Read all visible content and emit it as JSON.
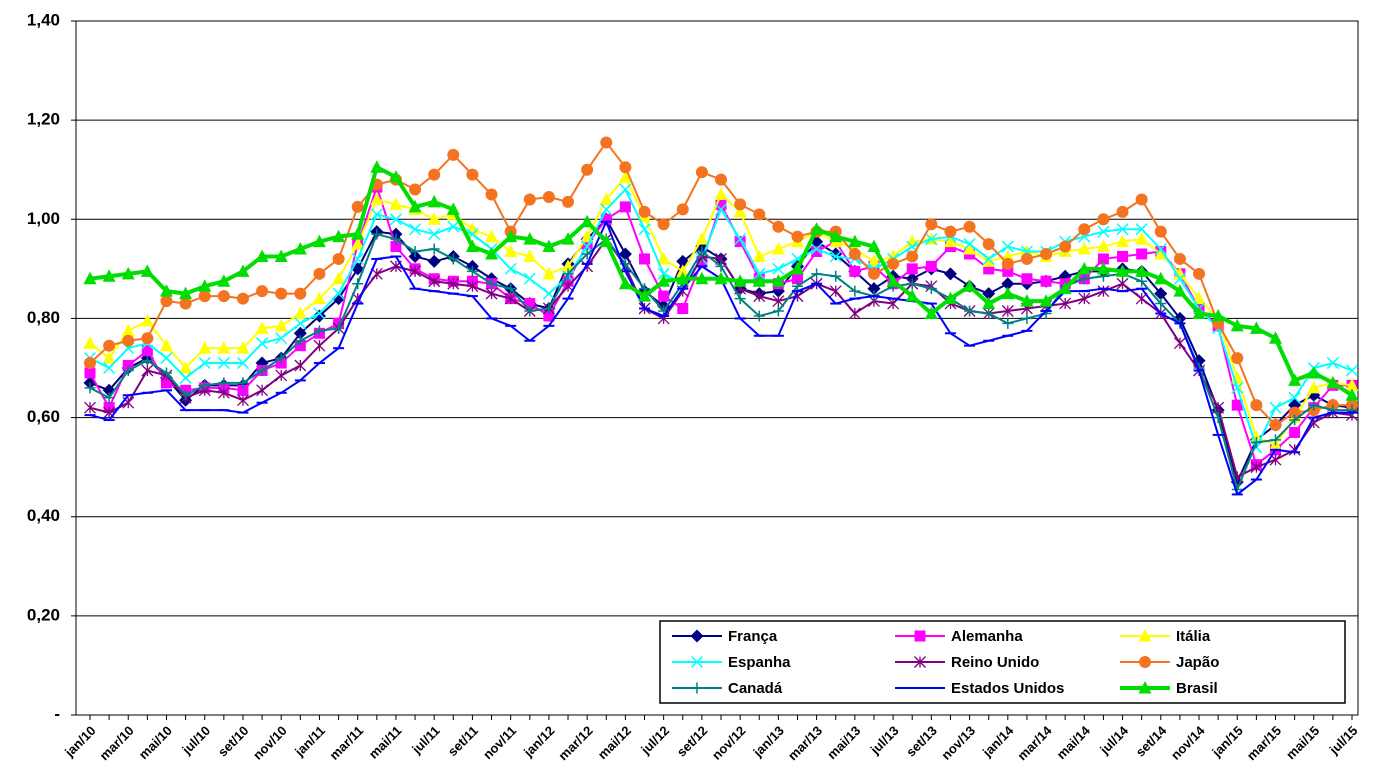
{
  "chart_data": {
    "type": "line",
    "categories": [
      "jan/10",
      null,
      "mar/10",
      null,
      "mai/10",
      null,
      "jul/10",
      null,
      "set/10",
      null,
      "nov/10",
      null,
      "jan/11",
      null,
      "mar/11",
      null,
      "mai/11",
      null,
      "jul/11",
      null,
      "set/11",
      null,
      "nov/11",
      null,
      "jan/12",
      null,
      "mar/12",
      null,
      "mai/12",
      null,
      "jul/12",
      null,
      "set/12",
      null,
      "nov/12",
      null,
      "jan/13",
      null,
      "mar/13",
      null,
      "mai/13",
      null,
      "jul/13",
      null,
      "set/13",
      null,
      "nov/13",
      null,
      "jan/14",
      null,
      "mar/14",
      null,
      "mai/14",
      null,
      "jul/14",
      null,
      "set/14",
      null,
      "nov/14",
      null,
      "jan/15",
      null,
      "mar/15",
      null,
      "mai/15",
      null,
      "jul/15"
    ],
    "ylim": [
      0,
      1.4
    ],
    "yticks": [
      {
        "value": 0,
        "label": "-"
      },
      {
        "value": 0.2,
        "label": "0,20"
      },
      {
        "value": 0.4,
        "label": "0,40"
      },
      {
        "value": 0.6,
        "label": "0,60"
      },
      {
        "value": 0.8,
        "label": "0,80"
      },
      {
        "value": 1.0,
        "label": "1,00"
      },
      {
        "value": 1.2,
        "label": "1,20"
      },
      {
        "value": 1.4,
        "label": "1,40"
      }
    ],
    "grid": true,
    "legend": "bottom-right",
    "series": [
      {
        "name": "França",
        "color": "#000080",
        "marker": "diamond",
        "values": [
          0.67,
          0.655,
          0.7,
          0.72,
          0.68,
          0.635,
          0.665,
          0.665,
          0.665,
          0.71,
          0.72,
          0.77,
          0.805,
          0.84,
          0.9,
          0.975,
          0.97,
          0.925,
          0.915,
          0.925,
          0.905,
          0.88,
          0.86,
          0.83,
          0.82,
          0.91,
          0.96,
          1.0,
          0.93,
          0.855,
          0.825,
          0.915,
          0.945,
          0.92,
          0.86,
          0.85,
          0.855,
          0.905,
          0.955,
          0.93,
          0.895,
          0.86,
          0.885,
          0.88,
          0.9,
          0.89,
          0.865,
          0.85,
          0.87,
          0.87,
          0.875,
          0.885,
          0.895,
          0.895,
          0.9,
          0.895,
          0.85,
          0.8,
          0.715,
          0.615,
          0.47,
          0.555,
          0.585,
          0.625,
          0.645,
          0.625,
          0.62
        ]
      },
      {
        "name": "Alemanha",
        "color": "#ff00ff",
        "marker": "square",
        "values": [
          0.69,
          0.62,
          0.705,
          0.735,
          0.67,
          0.655,
          0.66,
          0.66,
          0.655,
          0.695,
          0.71,
          0.745,
          0.77,
          0.79,
          0.95,
          1.065,
          0.945,
          0.9,
          0.88,
          0.875,
          0.875,
          0.87,
          0.84,
          0.83,
          0.805,
          0.875,
          0.95,
          1.0,
          1.025,
          0.92,
          0.845,
          0.82,
          0.915,
          1.03,
          0.955,
          0.88,
          0.87,
          0.88,
          0.935,
          0.955,
          0.895,
          0.905,
          0.87,
          0.9,
          0.905,
          0.945,
          0.93,
          0.9,
          0.895,
          0.88,
          0.875,
          0.87,
          0.88,
          0.92,
          0.925,
          0.93,
          0.935,
          0.89,
          0.82,
          0.785,
          0.625,
          0.505,
          0.535,
          0.57,
          0.62,
          0.665,
          0.665
        ]
      },
      {
        "name": "Itália",
        "color": "#ffff00",
        "marker": "triangle",
        "values": [
          0.75,
          0.72,
          0.775,
          0.795,
          0.745,
          0.7,
          0.74,
          0.74,
          0.74,
          0.78,
          0.785,
          0.81,
          0.84,
          0.88,
          0.95,
          1.04,
          1.03,
          1.02,
          1.0,
          1.01,
          0.98,
          0.965,
          0.935,
          0.925,
          0.89,
          0.905,
          0.965,
          1.04,
          1.085,
          1.005,
          0.92,
          0.895,
          0.96,
          1.05,
          1.015,
          0.925,
          0.94,
          0.955,
          0.975,
          0.955,
          0.94,
          0.915,
          0.925,
          0.955,
          0.96,
          0.955,
          0.94,
          0.915,
          0.925,
          0.935,
          0.925,
          0.935,
          0.94,
          0.945,
          0.955,
          0.96,
          0.93,
          0.89,
          0.84,
          0.8,
          0.68,
          0.56,
          0.545,
          0.6,
          0.66,
          0.67,
          0.665
        ]
      },
      {
        "name": "Espanha",
        "color": "#00ffff",
        "marker": "x",
        "values": [
          0.72,
          0.7,
          0.74,
          0.75,
          0.72,
          0.68,
          0.71,
          0.71,
          0.71,
          0.75,
          0.76,
          0.79,
          0.81,
          0.85,
          0.92,
          1.01,
          1.0,
          0.98,
          0.97,
          0.985,
          0.97,
          0.94,
          0.9,
          0.88,
          0.85,
          0.885,
          0.945,
          1.02,
          1.06,
          0.98,
          0.89,
          0.87,
          0.92,
          1.02,
          0.96,
          0.89,
          0.9,
          0.92,
          0.94,
          0.925,
          0.92,
          0.9,
          0.92,
          0.945,
          0.96,
          0.965,
          0.95,
          0.92,
          0.945,
          0.935,
          0.935,
          0.955,
          0.965,
          0.975,
          0.98,
          0.98,
          0.94,
          0.88,
          0.82,
          0.78,
          0.66,
          0.54,
          0.62,
          0.64,
          0.7,
          0.71,
          0.695
        ]
      },
      {
        "name": "Reino Unido",
        "color": "#800080",
        "marker": "asterisk",
        "values": [
          0.62,
          0.61,
          0.63,
          0.695,
          0.685,
          0.64,
          0.655,
          0.65,
          0.635,
          0.655,
          0.685,
          0.705,
          0.745,
          0.78,
          0.84,
          0.89,
          0.905,
          0.895,
          0.875,
          0.87,
          0.865,
          0.85,
          0.84,
          0.815,
          0.82,
          0.865,
          0.905,
          0.96,
          0.905,
          0.82,
          0.8,
          0.855,
          0.925,
          0.92,
          0.86,
          0.845,
          0.835,
          0.845,
          0.87,
          0.855,
          0.81,
          0.835,
          0.83,
          0.87,
          0.865,
          0.83,
          0.815,
          0.81,
          0.815,
          0.82,
          0.825,
          0.83,
          0.84,
          0.855,
          0.87,
          0.84,
          0.81,
          0.75,
          0.695,
          0.62,
          0.48,
          0.5,
          0.515,
          0.535,
          0.59,
          0.61,
          0.605
        ]
      },
      {
        "name": "Japão",
        "color": "#f47320",
        "marker": "circle",
        "values": [
          0.71,
          0.745,
          0.755,
          0.76,
          0.835,
          0.83,
          0.845,
          0.845,
          0.84,
          0.855,
          0.85,
          0.85,
          0.89,
          0.92,
          1.025,
          1.07,
          1.08,
          1.06,
          1.09,
          1.13,
          1.09,
          1.05,
          0.975,
          1.04,
          1.045,
          1.035,
          1.1,
          1.155,
          1.105,
          1.015,
          0.99,
          1.02,
          1.095,
          1.08,
          1.03,
          1.01,
          0.985,
          0.965,
          0.975,
          0.975,
          0.93,
          0.89,
          0.91,
          0.925,
          0.99,
          0.975,
          0.985,
          0.95,
          0.91,
          0.92,
          0.93,
          0.945,
          0.98,
          1.0,
          1.015,
          1.04,
          0.975,
          0.92,
          0.89,
          0.79,
          0.72,
          0.625,
          0.585,
          0.61,
          0.615,
          0.625,
          0.625
        ]
      },
      {
        "name": "Canadá",
        "color": "#008080",
        "marker": "plus",
        "values": [
          0.66,
          0.64,
          0.695,
          0.715,
          0.69,
          0.645,
          0.665,
          0.67,
          0.67,
          0.695,
          0.72,
          0.755,
          0.775,
          0.78,
          0.87,
          0.97,
          0.96,
          0.935,
          0.94,
          0.92,
          0.895,
          0.87,
          0.86,
          0.815,
          0.82,
          0.89,
          0.93,
          0.96,
          0.91,
          0.86,
          0.815,
          0.87,
          0.935,
          0.905,
          0.84,
          0.805,
          0.815,
          0.865,
          0.89,
          0.885,
          0.855,
          0.845,
          0.865,
          0.87,
          0.86,
          0.84,
          0.815,
          0.81,
          0.79,
          0.8,
          0.81,
          0.865,
          0.88,
          0.885,
          0.89,
          0.875,
          0.83,
          0.79,
          0.7,
          0.6,
          0.455,
          0.55,
          0.555,
          0.595,
          0.625,
          0.615,
          0.615
        ]
      },
      {
        "name": "Estados Unidos",
        "color": "#0000ff",
        "marker": "dash",
        "values": [
          0.605,
          0.595,
          0.645,
          0.65,
          0.655,
          0.615,
          0.615,
          0.615,
          0.61,
          0.63,
          0.65,
          0.675,
          0.71,
          0.74,
          0.83,
          0.92,
          0.925,
          0.86,
          0.855,
          0.85,
          0.845,
          0.8,
          0.785,
          0.755,
          0.785,
          0.84,
          0.91,
          0.995,
          0.895,
          0.82,
          0.805,
          0.86,
          0.905,
          0.88,
          0.8,
          0.765,
          0.765,
          0.855,
          0.87,
          0.83,
          0.84,
          0.845,
          0.84,
          0.835,
          0.83,
          0.77,
          0.745,
          0.755,
          0.765,
          0.775,
          0.815,
          0.855,
          0.855,
          0.86,
          0.855,
          0.86,
          0.81,
          0.79,
          0.695,
          0.565,
          0.445,
          0.475,
          0.535,
          0.53,
          0.6,
          0.61,
          0.61
        ]
      },
      {
        "name": "Brasil",
        "color": "#00dd00",
        "marker": "triangle",
        "width": 4,
        "values": [
          0.88,
          0.885,
          0.89,
          0.895,
          0.855,
          0.85,
          0.865,
          0.875,
          0.895,
          0.925,
          0.925,
          0.94,
          0.955,
          0.965,
          0.97,
          1.105,
          1.085,
          1.025,
          1.035,
          1.02,
          0.945,
          0.93,
          0.965,
          0.96,
          0.945,
          0.96,
          0.995,
          0.955,
          0.87,
          0.845,
          0.875,
          0.88,
          0.88,
          0.88,
          0.875,
          0.875,
          0.875,
          0.9,
          0.98,
          0.965,
          0.955,
          0.945,
          0.875,
          0.845,
          0.81,
          0.84,
          0.865,
          0.83,
          0.85,
          0.835,
          0.835,
          0.86,
          0.9,
          0.9,
          0.895,
          0.895,
          0.88,
          0.855,
          0.81,
          0.805,
          0.785,
          0.78,
          0.76,
          0.675,
          0.69,
          0.67,
          0.645
        ]
      }
    ]
  }
}
